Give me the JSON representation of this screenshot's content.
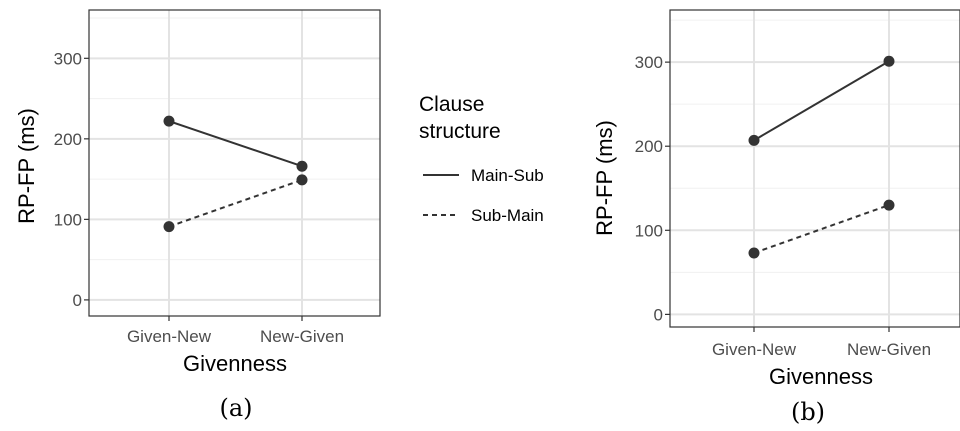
{
  "chart_data": [
    {
      "type": "line",
      "panel": "(a)",
      "categories": [
        "Given-New",
        "New-Given"
      ],
      "xlabel": "Givenness",
      "ylabel": "RP-FP (ms)",
      "ylim": [
        -20,
        360
      ],
      "yticks": [
        0,
        100,
        200,
        300
      ],
      "series": [
        {
          "name": "Main-Sub",
          "linestyle": "solid",
          "values": [
            222,
            166
          ]
        },
        {
          "name": "Sub-Main",
          "linestyle": "dashed",
          "values": [
            91,
            149
          ]
        }
      ]
    },
    {
      "type": "line",
      "panel": "(b)",
      "categories": [
        "Given-New",
        "New-Given"
      ],
      "xlabel": "Givenness",
      "ylabel": "RP-FP (ms)",
      "ylim": [
        -15,
        362
      ],
      "yticks": [
        0,
        100,
        200,
        300
      ],
      "series": [
        {
          "name": "Main-Sub",
          "linestyle": "solid",
          "values": [
            207,
            301
          ]
        },
        {
          "name": "Sub-Main",
          "linestyle": "dashed",
          "values": [
            73,
            130
          ]
        }
      ]
    }
  ],
  "legend": {
    "title_line1": "Clause",
    "title_line2": "structure",
    "items": [
      {
        "label": "Main-Sub",
        "linestyle": "solid"
      },
      {
        "label": "Sub-Main",
        "linestyle": "dashed"
      }
    ]
  },
  "colors": {
    "line": "#333333",
    "grid_major": "#e3e3e3",
    "grid_minor": "#f0f0f0",
    "border": "#333333"
  }
}
